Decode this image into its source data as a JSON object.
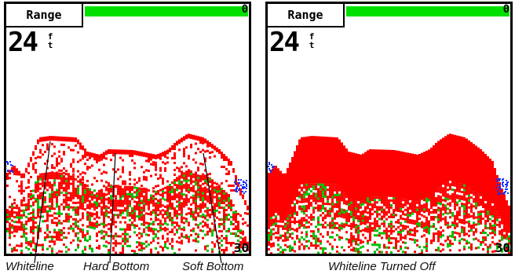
{
  "left_panel": {
    "range_label": "Range",
    "depth_value": "24",
    "depth_unit": "ft",
    "scale_top": "0",
    "scale_bottom": "30"
  },
  "right_panel": {
    "range_label": "Range",
    "depth_value": "24",
    "depth_unit": "ft",
    "scale_top": "0",
    "scale_bottom": "30"
  },
  "captions": {
    "whiteline": "Whiteline",
    "hard_bottom": "Hard Bottom",
    "soft_bottom": "Soft Bottom",
    "whiteline_off": "Whiteline Turned Off"
  },
  "colors": {
    "bottom_return": "#ff0000",
    "fish_arch": "#00c000",
    "bar": "#00e000",
    "water_structure": "#1030ff"
  }
}
